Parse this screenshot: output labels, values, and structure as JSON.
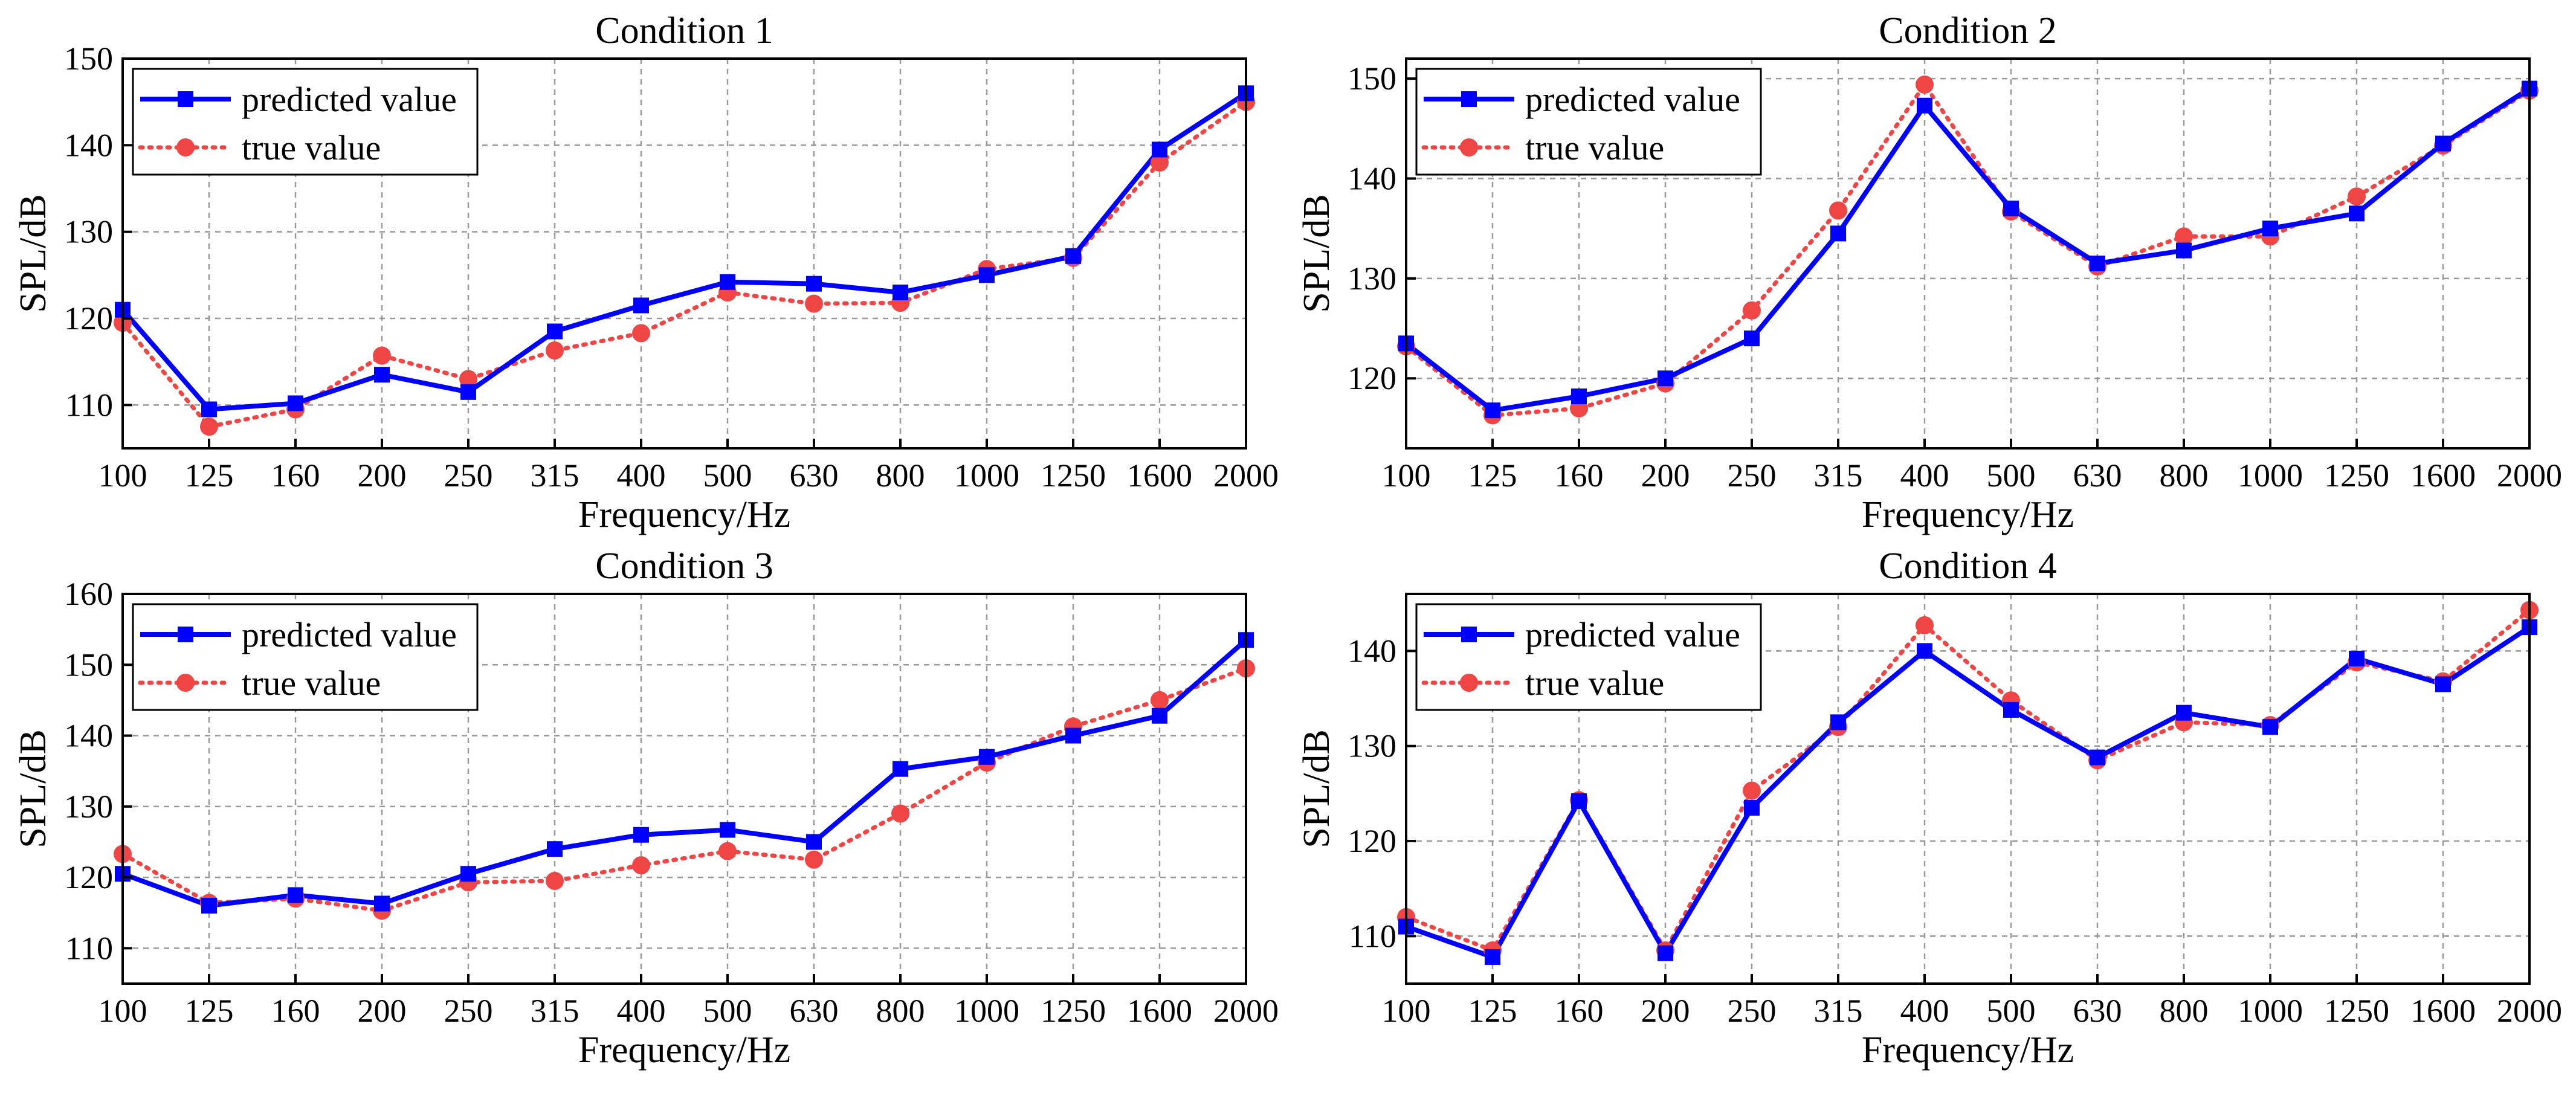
{
  "colors": {
    "predicted": "#0000ff",
    "true": "#f04545",
    "grid": "#999999",
    "axis": "#000000"
  },
  "chart_data": [
    {
      "type": "line",
      "title": "Condition 1",
      "xlabel": "Frequency/Hz",
      "ylabel": "SPL/dB",
      "categories": [
        "100",
        "125",
        "160",
        "200",
        "250",
        "315",
        "400",
        "500",
        "630",
        "800",
        "1000",
        "1250",
        "1600",
        "2000"
      ],
      "ylim": [
        105,
        150
      ],
      "yticks": [
        110,
        120,
        130,
        140,
        150
      ],
      "grid": true,
      "legend": "top-left",
      "series": [
        {
          "name": "predicted value",
          "values": [
            121,
            109.5,
            110.2,
            113.5,
            111.5,
            118.5,
            121.5,
            124.2,
            124.0,
            123.0,
            125.0,
            127.2,
            139.5,
            146.0
          ]
        },
        {
          "name": "true value",
          "values": [
            119.5,
            107.5,
            109.5,
            115.7,
            113.0,
            116.3,
            118.3,
            123.0,
            121.7,
            121.8,
            125.7,
            127.0,
            138.0,
            145.0
          ]
        }
      ]
    },
    {
      "type": "line",
      "title": "Condition 2",
      "xlabel": "Frequency/Hz",
      "ylabel": "SPL/dB",
      "categories": [
        "100",
        "125",
        "160",
        "200",
        "250",
        "315",
        "400",
        "500",
        "630",
        "800",
        "1000",
        "1250",
        "1600",
        "2000"
      ],
      "ylim": [
        113,
        152
      ],
      "yticks": [
        120,
        130,
        140,
        150
      ],
      "grid": true,
      "legend": "top-left",
      "series": [
        {
          "name": "predicted value",
          "values": [
            123.5,
            116.8,
            118.2,
            120.0,
            124.0,
            134.5,
            147.3,
            137.0,
            131.5,
            132.8,
            135.0,
            136.5,
            143.5,
            149.0
          ]
        },
        {
          "name": "true value",
          "values": [
            123.2,
            116.3,
            117.0,
            119.5,
            126.8,
            136.8,
            149.4,
            136.7,
            131.2,
            134.2,
            134.2,
            138.2,
            143.3,
            148.8
          ]
        }
      ]
    },
    {
      "type": "line",
      "title": "Condition 3",
      "xlabel": "Frequency/Hz",
      "ylabel": "SPL/dB",
      "categories": [
        "100",
        "125",
        "160",
        "200",
        "250",
        "315",
        "400",
        "500",
        "630",
        "800",
        "1000",
        "1250",
        "1600",
        "2000"
      ],
      "ylim": [
        105,
        160
      ],
      "yticks": [
        110,
        120,
        130,
        140,
        150,
        160
      ],
      "grid": true,
      "legend": "top-left",
      "series": [
        {
          "name": "predicted value",
          "values": [
            120.5,
            116.0,
            117.5,
            116.3,
            120.5,
            124.0,
            126.0,
            126.7,
            125.0,
            135.3,
            137.0,
            140.0,
            142.8,
            153.5
          ]
        },
        {
          "name": "true value",
          "values": [
            123.3,
            116.4,
            117.0,
            115.3,
            119.3,
            119.5,
            121.7,
            123.7,
            122.5,
            129.0,
            136.2,
            141.3,
            145.0,
            149.5
          ]
        }
      ]
    },
    {
      "type": "line",
      "title": "Condition 4",
      "xlabel": "Frequency/Hz",
      "ylabel": "SPL/dB",
      "categories": [
        "100",
        "125",
        "160",
        "200",
        "250",
        "315",
        "400",
        "500",
        "630",
        "800",
        "1000",
        "1250",
        "1600",
        "2000"
      ],
      "ylim": [
        105,
        146
      ],
      "yticks": [
        110,
        120,
        130,
        140
      ],
      "grid": true,
      "legend": "top-left",
      "series": [
        {
          "name": "predicted value",
          "values": [
            111.0,
            107.8,
            124.2,
            108.2,
            123.5,
            132.5,
            140.0,
            133.8,
            128.8,
            133.5,
            132.0,
            139.2,
            136.5,
            142.5
          ]
        },
        {
          "name": "true value",
          "values": [
            112.0,
            108.5,
            124.3,
            108.5,
            125.3,
            132.0,
            142.7,
            134.8,
            128.5,
            132.5,
            132.2,
            138.8,
            136.8,
            144.3
          ]
        }
      ]
    }
  ]
}
